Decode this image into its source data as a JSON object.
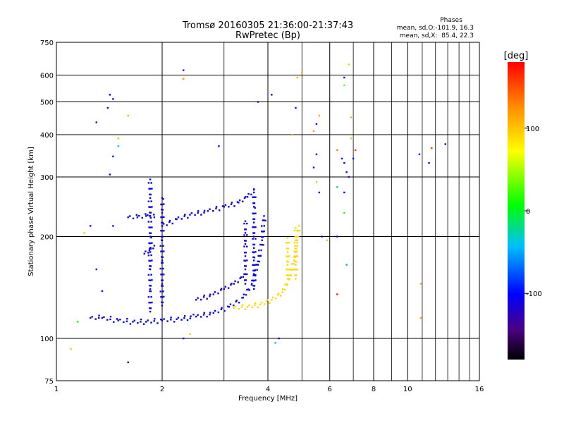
{
  "chart_data": {
    "type": "scatter",
    "title": "Tromsø 20160305 21:36:00-21:37:43",
    "subtitle": "RwPretec (Bp)",
    "xlabel": "Frequency [MHz]",
    "ylabel": "Stationary phase Virtual Height [km]",
    "x_scale": "log",
    "y_scale": "log",
    "xlim": [
      1,
      16
    ],
    "ylim": [
      75,
      750
    ],
    "x_ticks": [
      1,
      2,
      4,
      6,
      8,
      10,
      16
    ],
    "y_ticks": [
      75,
      100,
      200,
      300,
      400,
      500,
      600,
      750
    ],
    "grid": true,
    "stats": {
      "heading": "Phases",
      "line_o": "mean, sd,O:-101.9, 16.3",
      "line_x": "mean, sd,X:  85.4, 22.3"
    },
    "colorbar": {
      "label": "[deg]",
      "range": [
        -180,
        180
      ],
      "ticks": [
        -100,
        0,
        100
      ]
    },
    "traces": {
      "o_low_branch": {
        "x": [
          1.25,
          1.35,
          1.5,
          1.65,
          1.8,
          2.0,
          2.2,
          2.5,
          2.8,
          3.1,
          3.4,
          3.6,
          3.75,
          3.85,
          3.9
        ],
        "y": [
          115,
          115,
          113,
          112,
          112,
          113,
          114,
          116,
          119,
          124,
          132,
          145,
          165,
          195,
          230
        ],
        "phase": -105
      },
      "x_low_branch": {
        "x": [
          3.2,
          3.5,
          3.8,
          4.1,
          4.4,
          4.6,
          4.75,
          4.85,
          4.9
        ],
        "y": [
          123,
          124,
          126,
          130,
          137,
          150,
          170,
          195,
          215
        ],
        "phase": 90
      },
      "o_upper_branch": {
        "x": [
          2.0,
          2.2,
          2.4,
          2.7,
          3.0,
          3.3,
          3.5,
          3.65
        ],
        "y": [
          215,
          225,
          232,
          238,
          245,
          252,
          262,
          275
        ],
        "phase": -105
      },
      "o_column_1_8": {
        "x": [
          1.85,
          1.85,
          1.85,
          1.85,
          1.85,
          1.85,
          1.85,
          1.85
        ],
        "y": [
          120,
          140,
          160,
          180,
          200,
          230,
          260,
          295
        ],
        "phase": -105
      },
      "o_column_2_0": {
        "x": [
          2.0,
          2.0,
          2.0,
          2.0,
          2.0,
          2.0,
          2.0
        ],
        "y": [
          125,
          145,
          170,
          195,
          215,
          235,
          260
        ],
        "phase": -110
      },
      "o_cluster_1_75": {
        "x": [
          1.6,
          1.7,
          1.8,
          1.9
        ],
        "y": [
          228,
          228,
          230,
          228
        ],
        "phase": -105
      },
      "o_cluster_1_8_low": {
        "x": [
          1.78,
          1.84,
          1.9
        ],
        "y": [
          178,
          182,
          188
        ],
        "phase": -110
      },
      "o_mid_cluster": {
        "x": [
          2.5,
          2.8,
          3.0,
          3.2,
          3.4
        ],
        "y": [
          130,
          135,
          140,
          145,
          152
        ],
        "phase": -110
      },
      "o_column_3_6": {
        "x": [
          3.65,
          3.65,
          3.65,
          3.65,
          3.65,
          3.65,
          3.65,
          3.65
        ],
        "y": [
          140,
          155,
          170,
          185,
          200,
          220,
          245,
          270
        ],
        "phase": -105
      },
      "o_column_3_5": {
        "x": [
          3.45,
          3.45,
          3.45,
          3.45,
          3.45,
          3.45
        ],
        "y": [
          145,
          160,
          175,
          190,
          205,
          222
        ],
        "phase": -110
      },
      "x_column_4_8": {
        "x": [
          4.8,
          4.8,
          4.8,
          4.8,
          4.8
        ],
        "y": [
          150,
          165,
          180,
          195,
          212
        ],
        "phase": 92
      },
      "x_column_4_6": {
        "x": [
          4.55,
          4.55,
          4.55,
          4.55
        ],
        "y": [
          150,
          165,
          180,
          198
        ],
        "phase": 88
      }
    },
    "scatter_points": [
      {
        "x": 1.42,
        "y": 525,
        "phase": -110
      },
      {
        "x": 1.45,
        "y": 510,
        "phase": -110
      },
      {
        "x": 1.4,
        "y": 480,
        "phase": -115
      },
      {
        "x": 1.3,
        "y": 435,
        "phase": -105
      },
      {
        "x": 1.45,
        "y": 345,
        "phase": -110
      },
      {
        "x": 1.42,
        "y": 305,
        "phase": -110
      },
      {
        "x": 1.5,
        "y": 390,
        "phase": 40
      },
      {
        "x": 1.5,
        "y": 370,
        "phase": -40
      },
      {
        "x": 1.6,
        "y": 455,
        "phase": 110
      },
      {
        "x": 1.45,
        "y": 215,
        "phase": -110
      },
      {
        "x": 1.3,
        "y": 160,
        "phase": -105
      },
      {
        "x": 1.35,
        "y": 138,
        "phase": -105
      },
      {
        "x": 1.25,
        "y": 215,
        "phase": -105
      },
      {
        "x": 1.6,
        "y": 85,
        "phase": -110
      },
      {
        "x": 1.1,
        "y": 93,
        "phase": 100
      },
      {
        "x": 1.2,
        "y": 205,
        "phase": 100
      },
      {
        "x": 1.15,
        "y": 112,
        "phase": 10
      },
      {
        "x": 2.3,
        "y": 620,
        "phase": -115
      },
      {
        "x": 2.3,
        "y": 585,
        "phase": 120
      },
      {
        "x": 2.9,
        "y": 370,
        "phase": -110
      },
      {
        "x": 2.3,
        "y": 100,
        "phase": -105
      },
      {
        "x": 2.4,
        "y": 103,
        "phase": 100
      },
      {
        "x": 3.75,
        "y": 500,
        "phase": -120
      },
      {
        "x": 4.1,
        "y": 525,
        "phase": -115
      },
      {
        "x": 4.8,
        "y": 480,
        "phase": -110
      },
      {
        "x": 4.85,
        "y": 590,
        "phase": 110
      },
      {
        "x": 5.0,
        "y": 610,
        "phase": 110
      },
      {
        "x": 4.7,
        "y": 400,
        "phase": 110
      },
      {
        "x": 5.5,
        "y": 430,
        "phase": -110
      },
      {
        "x": 5.4,
        "y": 410,
        "phase": 120
      },
      {
        "x": 5.6,
        "y": 455,
        "phase": 110
      },
      {
        "x": 5.5,
        "y": 350,
        "phase": -105
      },
      {
        "x": 5.4,
        "y": 320,
        "phase": -110
      },
      {
        "x": 5.5,
        "y": 290,
        "phase": 100
      },
      {
        "x": 5.6,
        "y": 270,
        "phase": -105
      },
      {
        "x": 5.7,
        "y": 200,
        "phase": -110
      },
      {
        "x": 5.9,
        "y": 195,
        "phase": 100
      },
      {
        "x": 4.3,
        "y": 100,
        "phase": -120
      },
      {
        "x": 4.2,
        "y": 97,
        "phase": -30
      },
      {
        "x": 6.3,
        "y": 360,
        "phase": 130
      },
      {
        "x": 6.3,
        "y": 280,
        "phase": -30
      },
      {
        "x": 6.3,
        "y": 200,
        "phase": -105
      },
      {
        "x": 6.5,
        "y": 340,
        "phase": -110
      },
      {
        "x": 6.6,
        "y": 330,
        "phase": -110
      },
      {
        "x": 6.7,
        "y": 310,
        "phase": -110
      },
      {
        "x": 6.8,
        "y": 300,
        "phase": -130
      },
      {
        "x": 6.6,
        "y": 590,
        "phase": -110
      },
      {
        "x": 6.6,
        "y": 560,
        "phase": 30
      },
      {
        "x": 6.8,
        "y": 645,
        "phase": 50
      },
      {
        "x": 6.9,
        "y": 450,
        "phase": 110
      },
      {
        "x": 6.9,
        "y": 390,
        "phase": 100
      },
      {
        "x": 7.1,
        "y": 360,
        "phase": 160
      },
      {
        "x": 7.0,
        "y": 340,
        "phase": -105
      },
      {
        "x": 6.6,
        "y": 270,
        "phase": -110
      },
      {
        "x": 6.6,
        "y": 235,
        "phase": 20
      },
      {
        "x": 6.7,
        "y": 165,
        "phase": -50
      },
      {
        "x": 6.3,
        "y": 135,
        "phase": 170
      },
      {
        "x": 10.8,
        "y": 350,
        "phase": -110
      },
      {
        "x": 11.5,
        "y": 330,
        "phase": -110
      },
      {
        "x": 11.7,
        "y": 365,
        "phase": 160
      },
      {
        "x": 12.8,
        "y": 375,
        "phase": -120
      },
      {
        "x": 10.9,
        "y": 145,
        "phase": 110
      },
      {
        "x": 10.9,
        "y": 115,
        "phase": 110
      }
    ]
  }
}
